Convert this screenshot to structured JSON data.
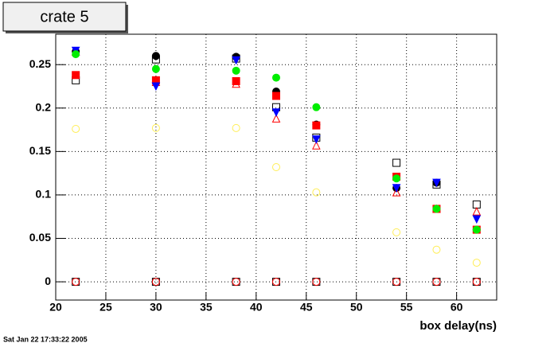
{
  "chart_data": {
    "type": "scatter",
    "title": "crate 5",
    "x_label": "box delay(ns)",
    "timestamp": "Sat Jan 22 17:33:22 2005",
    "x": [
      22,
      30,
      38,
      42,
      46,
      54,
      58,
      62
    ],
    "series": [
      {
        "color": "#000000",
        "marker": "filled-circle",
        "values": [
          0.265,
          0.26,
          0.259,
          0.219,
          0.181,
          0.108,
          0.114,
          0.06
        ]
      },
      {
        "color": "#000000",
        "marker": "open-square",
        "values": [
          0.232,
          0.256,
          0.257,
          0.201,
          0.166,
          0.137,
          0.112,
          0.089
        ]
      },
      {
        "color": "#ff0000",
        "marker": "filled-square",
        "values": [
          0.238,
          0.232,
          0.231,
          0.214,
          0.18,
          0.121,
          0.084,
          0.06
        ]
      },
      {
        "color": "#ff0000",
        "marker": "open-triangle",
        "values": [
          0.265,
          0.23,
          0.228,
          0.188,
          0.157,
          0.103,
          0.084,
          0.081
        ]
      },
      {
        "color": "#0000ff",
        "marker": "filled-triangle-down",
        "values": [
          0.266,
          0.225,
          0.255,
          0.195,
          0.164,
          0.108,
          0.114,
          0.072
        ]
      },
      {
        "color": "#00ee00",
        "marker": "filled-circle",
        "values": [
          0.262,
          0.245,
          0.243,
          0.235,
          0.201,
          0.119,
          0.084,
          0.06
        ]
      },
      {
        "color": "#ffee55",
        "marker": "open-circle",
        "values": [
          0.176,
          0.177,
          0.177,
          0.132,
          0.103,
          0.057,
          0.037,
          0.022
        ]
      },
      {
        "color": "#000000",
        "marker": "open-square",
        "values": [
          0,
          0,
          0,
          0,
          0,
          0,
          0,
          0
        ]
      },
      {
        "color": "#ff0000",
        "marker": "open-circle",
        "values": [
          0,
          0,
          0,
          0,
          0,
          0,
          0,
          0
        ]
      }
    ],
    "xlim": [
      20,
      64
    ],
    "ylim": [
      -0.021,
      0.285
    ],
    "xticks": [
      20,
      25,
      30,
      35,
      40,
      45,
      50,
      55,
      60
    ],
    "yticks": [
      0,
      0.05,
      0.1,
      0.15,
      0.2,
      0.25
    ],
    "grid": true
  }
}
